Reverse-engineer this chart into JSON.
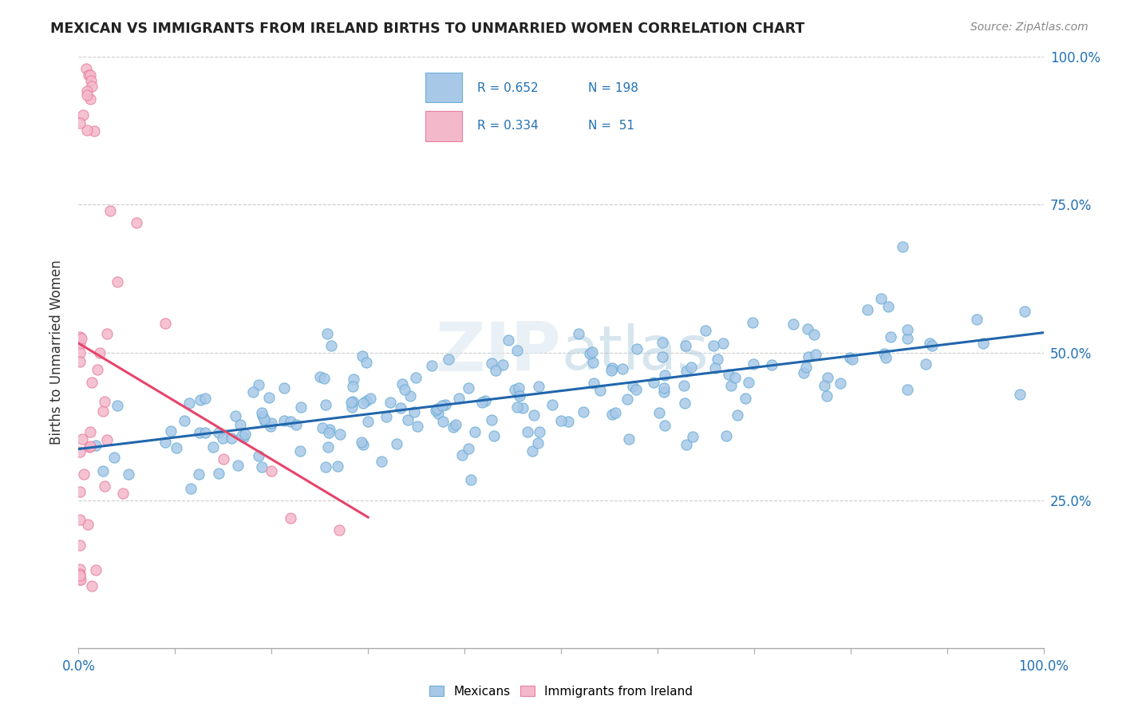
{
  "title": "MEXICAN VS IMMIGRANTS FROM IRELAND BIRTHS TO UNMARRIED WOMEN CORRELATION CHART",
  "source": "Source: ZipAtlas.com",
  "ylabel": "Births to Unmarried Women",
  "blue_R": 0.652,
  "blue_N": 198,
  "pink_R": 0.334,
  "pink_N": 51,
  "blue_color": "#a8c8e8",
  "blue_edge_color": "#6baed6",
  "pink_color": "#f4b8cb",
  "pink_edge_color": "#e87fa0",
  "blue_line_color": "#2166ac",
  "pink_line_color": "#e8436a",
  "watermark_color": "#d8e8f0",
  "legend_label_blue": "Mexicans",
  "legend_label_pink": "Immigrants from Ireland",
  "legend_text_color": "#2171b5",
  "grid_color": "#cccccc",
  "tick_label_color": "#2171b5",
  "title_color": "#222222",
  "source_color": "#888888"
}
